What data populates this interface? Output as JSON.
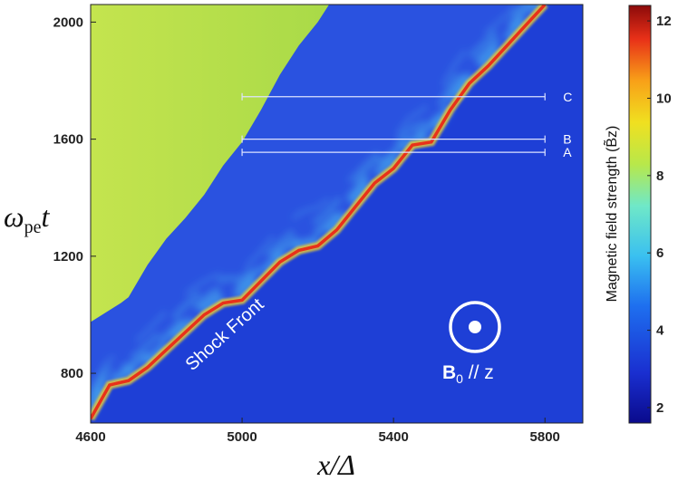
{
  "chart_data": {
    "type": "heatmap",
    "xlabel": "x/Δ",
    "ylabel": "ω_pe t",
    "ylabel_main": "ω",
    "ylabel_sub": "pe",
    "ylabel_tail": "t",
    "xlim": [
      4600,
      5900
    ],
    "ylim": [
      630,
      2060
    ],
    "x_ticks": [
      4600,
      5000,
      5400,
      5800
    ],
    "y_ticks": [
      800,
      1200,
      1600,
      2000
    ],
    "colorbar": {
      "label": "Magnetic field strength (B̃z)",
      "range": [
        1.6,
        12.4
      ],
      "ticks": [
        2,
        4,
        6,
        8,
        10,
        12
      ],
      "colormap": "jet"
    },
    "regions": {
      "upstream_level": 7.2,
      "downstream_level": 2.0,
      "turbulent_layer_level": 3.0
    },
    "shock_front_path": [
      [
        4600,
        645
      ],
      [
        4650,
        760
      ],
      [
        4700,
        775
      ],
      [
        4750,
        820
      ],
      [
        4800,
        880
      ],
      [
        4900,
        1000
      ],
      [
        4950,
        1040
      ],
      [
        5000,
        1050
      ],
      [
        5100,
        1180
      ],
      [
        5150,
        1220
      ],
      [
        5200,
        1235
      ],
      [
        5250,
        1290
      ],
      [
        5300,
        1370
      ],
      [
        5350,
        1450
      ],
      [
        5400,
        1500
      ],
      [
        5450,
        1580
      ],
      [
        5500,
        1590
      ],
      [
        5550,
        1700
      ],
      [
        5600,
        1790
      ],
      [
        5650,
        1850
      ],
      [
        5700,
        1920
      ],
      [
        5750,
        1990
      ],
      [
        5800,
        2060
      ]
    ],
    "upstream_boundary_path": [
      [
        4600,
        975
      ],
      [
        4680,
        1040
      ],
      [
        4700,
        1060
      ],
      [
        4750,
        1170
      ],
      [
        4800,
        1260
      ],
      [
        4850,
        1330
      ],
      [
        4900,
        1410
      ],
      [
        4950,
        1510
      ],
      [
        5000,
        1590
      ],
      [
        5050,
        1700
      ],
      [
        5100,
        1820
      ],
      [
        5150,
        1920
      ],
      [
        5200,
        2000
      ],
      [
        5230,
        2060
      ]
    ],
    "annotations": {
      "shock_label": "Shock Front",
      "field_label_bold": "B",
      "field_label_sub": "0",
      "field_label_rest": " // z"
    },
    "time_cuts": [
      {
        "label": "C",
        "x_start": 5000,
        "x_end": 5800,
        "t": 1745
      },
      {
        "label": "B",
        "x_start": 5000,
        "x_end": 5800,
        "t": 1600
      },
      {
        "label": "A",
        "x_start": 5000,
        "x_end": 5800,
        "t": 1555
      }
    ]
  },
  "colors": {
    "upstream": "#b8e04a",
    "downstream": "#1e3fd6",
    "turbulence_light": "#4ab8ef",
    "shock": "#e8311a",
    "shock_glow": "#f6d12a",
    "white": "#ffffff"
  }
}
